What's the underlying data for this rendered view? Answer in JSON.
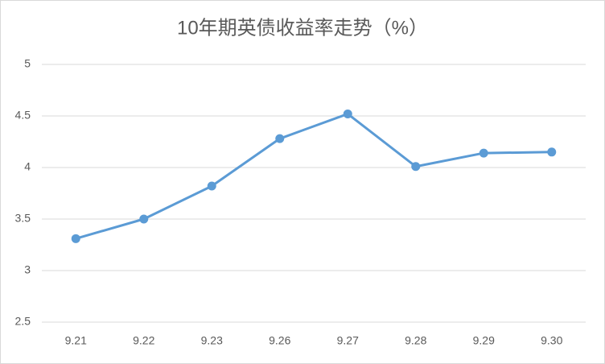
{
  "chart_data": {
    "type": "line",
    "title": "10年期英债收益率走势（%）",
    "categories": [
      "9.21",
      "9.22",
      "9.23",
      "9.26",
      "9.27",
      "9.28",
      "9.29",
      "9.30"
    ],
    "values": [
      3.31,
      3.5,
      3.82,
      4.28,
      4.52,
      4.01,
      4.14,
      4.15
    ],
    "color": "#5b9bd5",
    "ylim": [
      2.5,
      5
    ],
    "yticks": [
      2.5,
      3,
      3.5,
      4,
      4.5,
      5
    ],
    "grid": true
  }
}
